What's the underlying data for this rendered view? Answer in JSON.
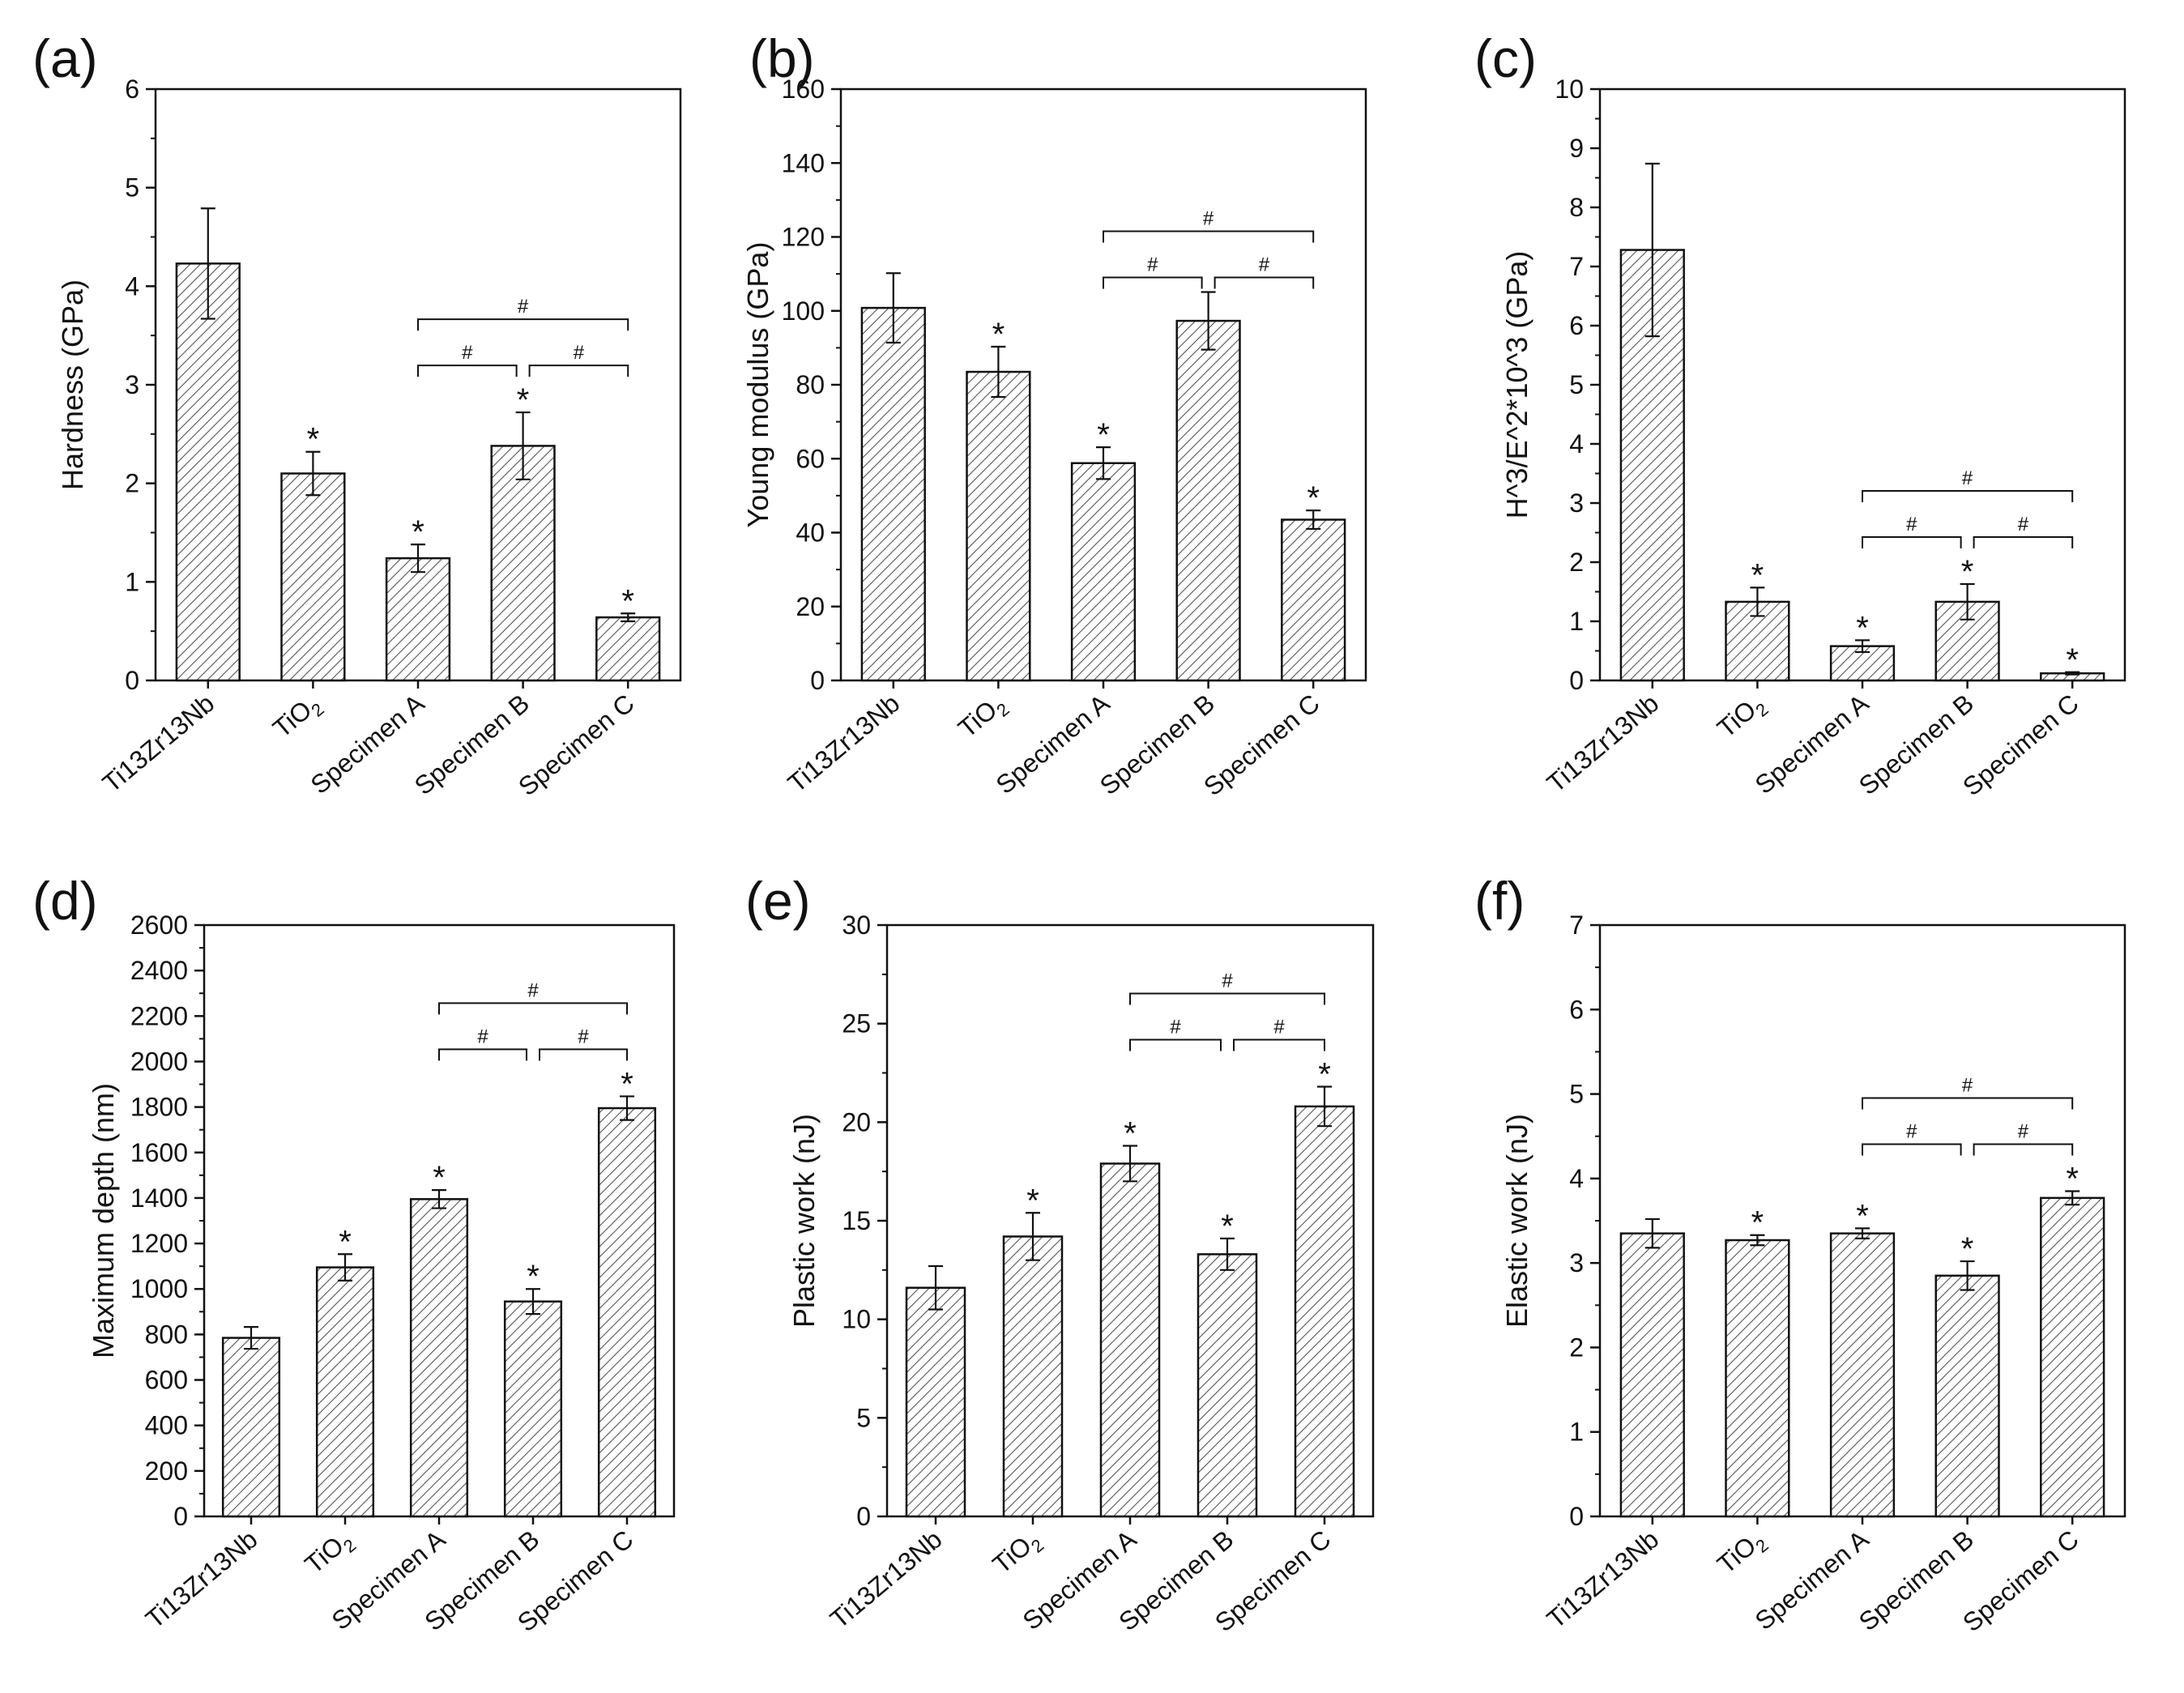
{
  "figure": {
    "categories": [
      "Ti13Zr13Nb",
      "TiO₂",
      "Specimen A",
      "Specimen B",
      "Specimen C"
    ],
    "significance_markers": {
      "vs_control": "*",
      "between_specimens": "#"
    }
  },
  "chart_data": [
    {
      "panel": "(a)",
      "type": "bar",
      "title": "",
      "xlabel": "",
      "ylabel": "Hardness (GPa)",
      "categories": [
        "Ti13Zr13Nb",
        "TiO₂",
        "Specimen A",
        "Specimen B",
        "Specimen C"
      ],
      "values": [
        4.23,
        2.1,
        1.24,
        2.38,
        0.64
      ],
      "errors": [
        0.56,
        0.22,
        0.14,
        0.34,
        0.04
      ],
      "star": [
        false,
        true,
        true,
        true,
        true
      ],
      "ylim": [
        0,
        6
      ],
      "yticks": [
        "0",
        "1",
        "2",
        "3",
        "4",
        "5",
        "6"
      ],
      "brackets": [
        {
          "from": "Specimen A",
          "to": "Specimen B",
          "label": "#"
        },
        {
          "from": "Specimen B",
          "to": "Specimen C",
          "label": "#"
        },
        {
          "from": "Specimen A",
          "to": "Specimen C",
          "label": "#"
        }
      ]
    },
    {
      "panel": "(b)",
      "type": "bar",
      "title": "",
      "xlabel": "",
      "ylabel": "Young modulus (GPa)",
      "categories": [
        "Ti13Zr13Nb",
        "TiO₂",
        "Specimen A",
        "Specimen B",
        "Specimen C"
      ],
      "values": [
        100.8,
        83.5,
        58.8,
        97.3,
        43.5
      ],
      "errors": [
        9.4,
        6.8,
        4.3,
        7.8,
        2.5
      ],
      "star": [
        false,
        true,
        true,
        false,
        true
      ],
      "ylim": [
        0,
        160
      ],
      "yticks": [
        "0",
        "20",
        "40",
        "60",
        "80",
        "100",
        "120",
        "140",
        "160"
      ],
      "brackets": [
        {
          "from": "Specimen A",
          "to": "Specimen B",
          "label": "#"
        },
        {
          "from": "Specimen B",
          "to": "Specimen C",
          "label": "#"
        },
        {
          "from": "Specimen A",
          "to": "Specimen C",
          "label": "#"
        }
      ]
    },
    {
      "panel": "(c)",
      "type": "bar",
      "title": "",
      "xlabel": "",
      "ylabel": "H^3/E^2*10^3 (GPa)",
      "categories": [
        "Ti13Zr13Nb",
        "TiO₂",
        "Specimen A",
        "Specimen B",
        "Specimen C"
      ],
      "values": [
        7.28,
        1.33,
        0.58,
        1.33,
        0.12
      ],
      "errors": [
        1.46,
        0.24,
        0.1,
        0.3,
        0.02
      ],
      "star": [
        false,
        true,
        true,
        true,
        true
      ],
      "ylim": [
        0,
        10
      ],
      "yticks": [
        "0",
        "1",
        "2",
        "3",
        "4",
        "5",
        "6",
        "7",
        "8",
        "9",
        "10"
      ],
      "brackets": [
        {
          "from": "Specimen A",
          "to": "Specimen B",
          "label": "#"
        },
        {
          "from": "Specimen B",
          "to": "Specimen C",
          "label": "#"
        },
        {
          "from": "Specimen A",
          "to": "Specimen C",
          "label": "#"
        }
      ]
    },
    {
      "panel": "(d)",
      "type": "bar",
      "title": "",
      "xlabel": "",
      "ylabel": "Maximum depth (nm)",
      "categories": [
        "Ti13Zr13Nb",
        "TiO₂",
        "Specimen A",
        "Specimen B",
        "Specimen C"
      ],
      "values": [
        785,
        1095,
        1395,
        945,
        1795
      ],
      "errors": [
        48,
        58,
        40,
        55,
        52
      ],
      "star": [
        false,
        true,
        true,
        true,
        true
      ],
      "ylim": [
        0,
        2600
      ],
      "yticks": [
        "0",
        "200",
        "400",
        "600",
        "800",
        "1000",
        "1200",
        "1400",
        "1600",
        "1800",
        "2000",
        "2200",
        "2400",
        "2600"
      ],
      "brackets": [
        {
          "from": "Specimen A",
          "to": "Specimen B",
          "label": "#"
        },
        {
          "from": "Specimen B",
          "to": "Specimen C",
          "label": "#"
        },
        {
          "from": "Specimen A",
          "to": "Specimen C",
          "label": "#"
        }
      ]
    },
    {
      "panel": "(e)",
      "type": "bar",
      "title": "",
      "xlabel": "",
      "ylabel": "Plastic work (nJ)",
      "categories": [
        "Ti13Zr13Nb",
        "TiO₂",
        "Specimen A",
        "Specimen B",
        "Specimen C"
      ],
      "values": [
        11.6,
        14.2,
        17.9,
        13.3,
        20.8
      ],
      "errors": [
        1.1,
        1.2,
        0.9,
        0.8,
        1.0
      ],
      "star": [
        false,
        true,
        true,
        true,
        true
      ],
      "ylim": [
        0,
        30
      ],
      "yticks": [
        "0",
        "5",
        "10",
        "15",
        "20",
        "25",
        "30"
      ],
      "brackets": [
        {
          "from": "Specimen A",
          "to": "Specimen B",
          "label": "#"
        },
        {
          "from": "Specimen B",
          "to": "Specimen C",
          "label": "#"
        },
        {
          "from": "Specimen A",
          "to": "Specimen C",
          "label": "#"
        }
      ]
    },
    {
      "panel": "(f)",
      "type": "bar",
      "title": "",
      "xlabel": "",
      "ylabel": "Elastic work (nJ)",
      "categories": [
        "Ti13Zr13Nb",
        "TiO₂",
        "Specimen A",
        "Specimen B",
        "Specimen C"
      ],
      "values": [
        3.35,
        3.27,
        3.35,
        2.85,
        3.77
      ],
      "errors": [
        0.17,
        0.06,
        0.06,
        0.17,
        0.08
      ],
      "star": [
        false,
        true,
        true,
        true,
        true
      ],
      "ylim": [
        0,
        7
      ],
      "yticks": [
        "0",
        "1",
        "2",
        "3",
        "4",
        "5",
        "6",
        "7"
      ],
      "brackets": [
        {
          "from": "Specimen A",
          "to": "Specimen B",
          "label": "#"
        },
        {
          "from": "Specimen B",
          "to": "Specimen C",
          "label": "#"
        },
        {
          "from": "Specimen A",
          "to": "Specimen C",
          "label": "#"
        }
      ]
    }
  ]
}
